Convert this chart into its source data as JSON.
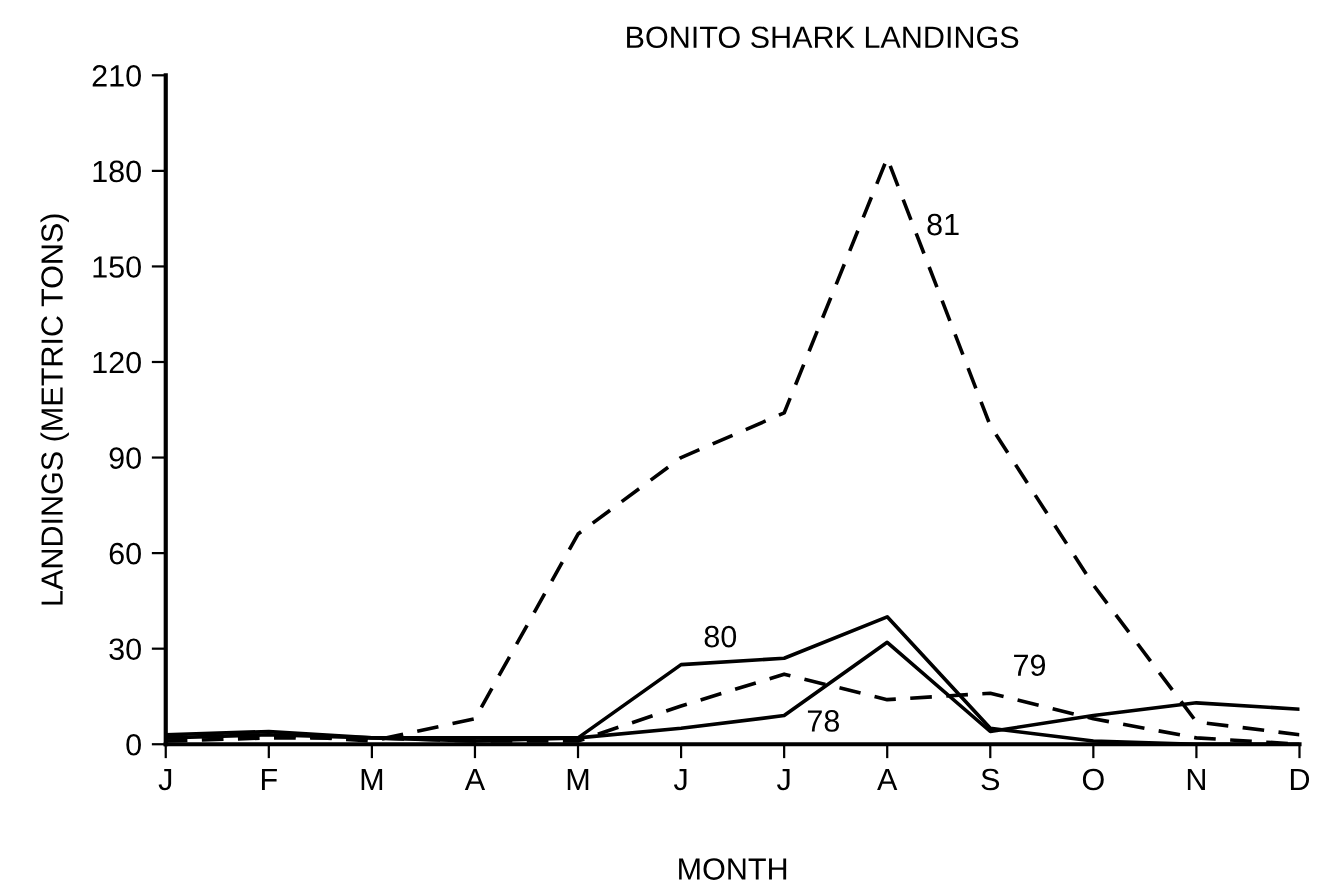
{
  "chart_data": {
    "type": "line",
    "title": "BONITO SHARK LANDINGS",
    "xlabel": "MONTH",
    "ylabel": "LANDINGS (METRIC TONS)",
    "categories": [
      "J",
      "F",
      "M",
      "A",
      "M",
      "J",
      "J",
      "A",
      "S",
      "O",
      "N",
      "D"
    ],
    "ylim": [
      0,
      210
    ],
    "yticks": [
      0,
      30,
      60,
      90,
      120,
      150,
      180,
      210
    ],
    "grid": false,
    "legend": false,
    "marker": "none",
    "series": [
      {
        "name": "81",
        "color": "#000000",
        "line_style": "dashed",
        "values": [
          2,
          3,
          1,
          8,
          66,
          90,
          104,
          184,
          100,
          50,
          7,
          3
        ]
      },
      {
        "name": "80",
        "color": "#000000",
        "line_style": "solid",
        "values": [
          3,
          4,
          2,
          2,
          2,
          25,
          27,
          40,
          5,
          1,
          0,
          0
        ]
      },
      {
        "name": "79",
        "color": "#000000",
        "line_style": "dashed",
        "values": [
          1,
          2,
          2,
          1,
          1,
          12,
          22,
          14,
          16,
          8,
          2,
          0
        ]
      },
      {
        "name": "78",
        "color": "#000000",
        "line_style": "solid",
        "values": [
          2,
          3,
          2,
          1,
          2,
          5,
          9,
          32,
          4,
          9,
          13,
          11
        ]
      }
    ]
  }
}
